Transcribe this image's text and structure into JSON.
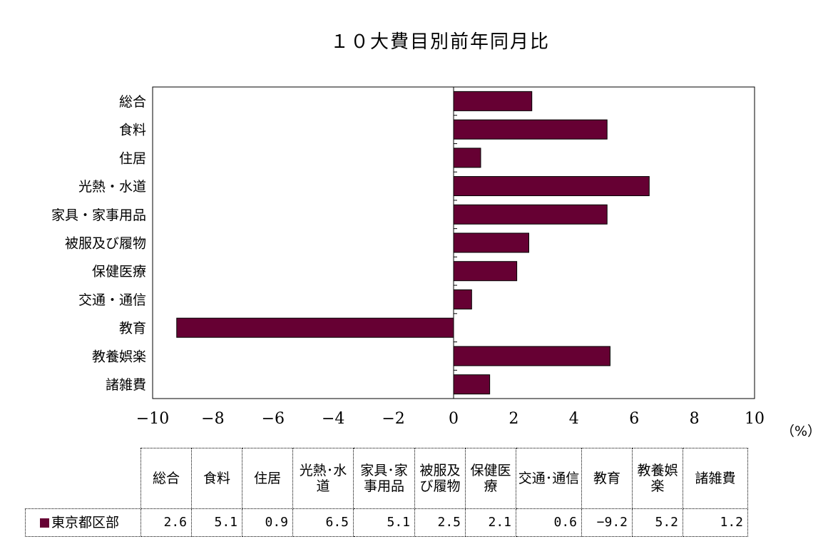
{
  "chart_data": {
    "type": "bar",
    "orientation": "horizontal",
    "title": "１０大費目別前年同月比",
    "unit": "（%）",
    "categories": [
      "総合",
      "食料",
      "住居",
      "光熱・水道",
      "家具・家事用品",
      "被服及び履物",
      "保健医療",
      "交通・通信",
      "教育",
      "教養娯楽",
      "諸雑費"
    ],
    "table_headers": [
      "総合",
      "食料",
      "住居",
      "光熱･水道",
      "家具･家事用品",
      "被服及び履物",
      "保健医療",
      "交通･通信",
      "教育",
      "教養娯楽",
      "諸雑費"
    ],
    "series": [
      {
        "name": "東京都区部",
        "values": [
          2.6,
          5.1,
          0.9,
          6.5,
          5.1,
          2.5,
          2.1,
          0.6,
          -9.2,
          5.2,
          1.2
        ]
      }
    ],
    "value_labels": [
      "2.6",
      "5.1",
      "0.9",
      "6.5",
      "5.1",
      "2.5",
      "2.1",
      "0.6",
      "−9.2",
      "5.2",
      "1.2"
    ],
    "xlim": [
      -10,
      10
    ],
    "x_ticks": [
      -10,
      -8,
      -6,
      -4,
      -2,
      0,
      2,
      4,
      6,
      8,
      10
    ],
    "x_tick_labels": [
      "−10",
      "−8",
      "−6",
      "−4",
      "−2",
      "0",
      "2",
      "4",
      "6",
      "8",
      "10"
    ],
    "grid": false,
    "bar_color": "#660033"
  }
}
